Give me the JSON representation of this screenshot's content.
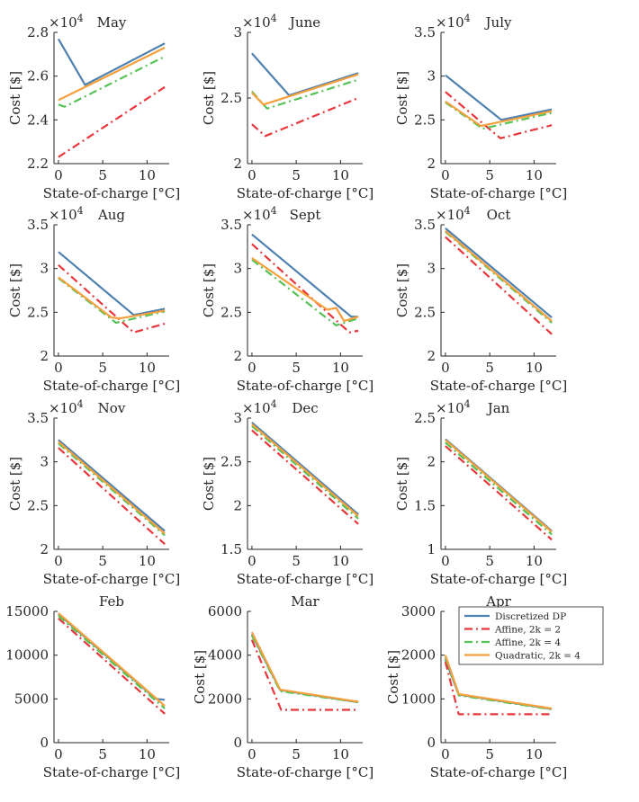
{
  "legend": {
    "entries": [
      {
        "name": "Discretized DP",
        "color": "#4f81b0",
        "dash": "solid"
      },
      {
        "name": "Affine, 2k = 2",
        "color": "#e8373c",
        "dash": "dashdot"
      },
      {
        "name": "Affine, 2k = 4",
        "color": "#57c255",
        "dash": "dashdot"
      },
      {
        "name": "Quadratic, 2k = 4",
        "color": "#f5a03c",
        "dash": "solid"
      }
    ]
  },
  "chart_data": [
    {
      "type": "line",
      "title": "May",
      "xlabel": "State-of-charge [°C]",
      "ylabel": "Cost [$]",
      "multiplier": "×10^4",
      "xlim": [
        -0.5,
        12.5
      ],
      "ylim": [
        2.2,
        2.8
      ],
      "xticks": [
        "0",
        "5",
        "10"
      ],
      "yticks": [
        "2.2",
        "2.4",
        "2.6",
        "2.8"
      ],
      "series": [
        {
          "name": "Discretized DP",
          "x": [
            0,
            3,
            12
          ],
          "y": [
            2.77,
            2.56,
            2.75
          ]
        },
        {
          "name": "Affine, 2k = 2",
          "x": [
            0,
            12
          ],
          "y": [
            2.23,
            2.55
          ]
        },
        {
          "name": "Affine, 2k = 4",
          "x": [
            0,
            0.7,
            12
          ],
          "y": [
            2.47,
            2.46,
            2.69
          ]
        },
        {
          "name": "Quadratic, 2k = 4",
          "x": [
            0,
            12
          ],
          "y": [
            2.49,
            2.73
          ]
        }
      ]
    },
    {
      "type": "line",
      "title": "June",
      "xlabel": "State-of-charge [°C]",
      "ylabel": "Cost [$]",
      "multiplier": "×10^4",
      "xlim": [
        -0.5,
        12.5
      ],
      "ylim": [
        2.0,
        3.0
      ],
      "xticks": [
        "0",
        "5",
        "10"
      ],
      "yticks": [
        "2",
        "2.5",
        "3"
      ],
      "series": [
        {
          "name": "Discretized DP",
          "x": [
            0,
            4.2,
            12
          ],
          "y": [
            2.84,
            2.52,
            2.69
          ]
        },
        {
          "name": "Affine, 2k = 2",
          "x": [
            0,
            1.5,
            12
          ],
          "y": [
            2.3,
            2.21,
            2.5
          ]
        },
        {
          "name": "Affine, 2k = 4",
          "x": [
            0,
            1.7,
            12
          ],
          "y": [
            2.55,
            2.42,
            2.64
          ]
        },
        {
          "name": "Quadratic, 2k = 4",
          "x": [
            0,
            1.3,
            12
          ],
          "y": [
            2.54,
            2.45,
            2.68
          ]
        }
      ]
    },
    {
      "type": "line",
      "title": "July",
      "xlabel": "State-of-charge [°C]",
      "ylabel": "Cost [$]",
      "multiplier": "×10^4",
      "xlim": [
        -0.5,
        12.5
      ],
      "ylim": [
        2.0,
        3.5
      ],
      "xticks": [
        "0",
        "5",
        "10"
      ],
      "yticks": [
        "2",
        "2.5",
        "3",
        "3.5"
      ],
      "series": [
        {
          "name": "Discretized DP",
          "x": [
            0,
            6.3,
            12
          ],
          "y": [
            3.01,
            2.5,
            2.62
          ]
        },
        {
          "name": "Affine, 2k = 2",
          "x": [
            0,
            6.2,
            12
          ],
          "y": [
            2.82,
            2.29,
            2.44
          ]
        },
        {
          "name": "Affine, 2k = 4",
          "x": [
            0,
            4.2,
            12
          ],
          "y": [
            2.7,
            2.4,
            2.58
          ]
        },
        {
          "name": "Quadratic, 2k = 4",
          "x": [
            0,
            4.0,
            12
          ],
          "y": [
            2.71,
            2.43,
            2.6
          ]
        }
      ]
    },
    {
      "type": "line",
      "title": "Aug",
      "xlabel": "State-of-charge [°C]",
      "ylabel": "Cost [$]",
      "multiplier": "×10^4",
      "xlim": [
        -0.5,
        12.5
      ],
      "ylim": [
        2.0,
        3.5
      ],
      "xticks": [
        "0",
        "5",
        "10"
      ],
      "yticks": [
        "2",
        "2.5",
        "3",
        "3.5"
      ],
      "series": [
        {
          "name": "Discretized DP",
          "x": [
            0,
            8.5,
            12
          ],
          "y": [
            3.19,
            2.47,
            2.54
          ]
        },
        {
          "name": "Affine, 2k = 2",
          "x": [
            0,
            8.5,
            12
          ],
          "y": [
            3.04,
            2.27,
            2.37
          ]
        },
        {
          "name": "Affine, 2k = 4",
          "x": [
            0,
            6.5,
            12
          ],
          "y": [
            2.89,
            2.38,
            2.51
          ]
        },
        {
          "name": "Quadratic, 2k = 4",
          "x": [
            0,
            6.0,
            7.0,
            12
          ],
          "y": [
            2.9,
            2.44,
            2.43,
            2.52
          ]
        }
      ]
    },
    {
      "type": "line",
      "title": "Sept",
      "xlabel": "State-of-charge [°C]",
      "ylabel": "Cost [$]",
      "multiplier": "×10^4",
      "xlim": [
        -0.5,
        12.5
      ],
      "ylim": [
        2.0,
        3.5
      ],
      "xticks": [
        "0",
        "5",
        "10"
      ],
      "yticks": [
        "2",
        "2.5",
        "3",
        "3.5"
      ],
      "series": [
        {
          "name": "Discretized DP",
          "x": [
            0,
            11.2,
            12
          ],
          "y": [
            3.39,
            2.45,
            2.45
          ]
        },
        {
          "name": "Affine, 2k = 2",
          "x": [
            0,
            11.0,
            12
          ],
          "y": [
            3.28,
            2.27,
            2.29
          ]
        },
        {
          "name": "Affine, 2k = 4",
          "x": [
            0,
            9.5,
            12
          ],
          "y": [
            3.1,
            2.35,
            2.43
          ]
        },
        {
          "name": "Quadratic, 2k = 4",
          "x": [
            0,
            8.5,
            9.5,
            10.4,
            12
          ],
          "y": [
            3.12,
            2.53,
            2.55,
            2.4,
            2.45
          ]
        }
      ]
    },
    {
      "type": "line",
      "title": "Oct",
      "xlabel": "State-of-charge [°C]",
      "ylabel": "Cost [$]",
      "multiplier": "×10^4",
      "xlim": [
        -0.5,
        12.5
      ],
      "ylim": [
        2.0,
        3.5
      ],
      "xticks": [
        "0",
        "5",
        "10"
      ],
      "yticks": [
        "2",
        "2.5",
        "3",
        "3.5"
      ],
      "series": [
        {
          "name": "Discretized DP",
          "x": [
            0,
            12
          ],
          "y": [
            3.46,
            2.44
          ]
        },
        {
          "name": "Affine, 2k = 2",
          "x": [
            0,
            12
          ],
          "y": [
            3.36,
            2.25
          ]
        },
        {
          "name": "Affine, 2k = 4",
          "x": [
            0,
            12
          ],
          "y": [
            3.42,
            2.38
          ]
        },
        {
          "name": "Quadratic, 2k = 4",
          "x": [
            0,
            12
          ],
          "y": [
            3.43,
            2.4
          ]
        }
      ]
    },
    {
      "type": "line",
      "title": "Nov",
      "xlabel": "State-of-charge [°C]",
      "ylabel": "Cost [$]",
      "multiplier": "×10^4",
      "xlim": [
        -0.5,
        12.5
      ],
      "ylim": [
        2.0,
        3.5
      ],
      "xticks": [
        "0",
        "5",
        "10"
      ],
      "yticks": [
        "2",
        "2.5",
        "3",
        "3.5"
      ],
      "series": [
        {
          "name": "Discretized DP",
          "x": [
            0,
            12
          ],
          "y": [
            3.25,
            2.21
          ]
        },
        {
          "name": "Affine, 2k = 2",
          "x": [
            0,
            12
          ],
          "y": [
            3.16,
            2.06
          ]
        },
        {
          "name": "Affine, 2k = 4",
          "x": [
            0,
            12
          ],
          "y": [
            3.21,
            2.16
          ]
        },
        {
          "name": "Quadratic, 2k = 4",
          "x": [
            0,
            12
          ],
          "y": [
            3.23,
            2.18
          ]
        }
      ]
    },
    {
      "type": "line",
      "title": "Dec",
      "xlabel": "State-of-charge [°C]",
      "ylabel": "Cost [$]",
      "multiplier": "×10^4",
      "xlim": [
        -0.5,
        12.5
      ],
      "ylim": [
        1.5,
        3.0
      ],
      "xticks": [
        "0",
        "5",
        "10"
      ],
      "yticks": [
        "1.5",
        "2",
        "2.5",
        "3"
      ],
      "series": [
        {
          "name": "Discretized DP",
          "x": [
            0,
            12
          ],
          "y": [
            2.95,
            1.9
          ]
        },
        {
          "name": "Affine, 2k = 2",
          "x": [
            0,
            12
          ],
          "y": [
            2.86,
            1.79
          ]
        },
        {
          "name": "Affine, 2k = 4",
          "x": [
            0,
            12
          ],
          "y": [
            2.91,
            1.85
          ]
        },
        {
          "name": "Quadratic, 2k = 4",
          "x": [
            0,
            12
          ],
          "y": [
            2.93,
            1.88
          ]
        }
      ]
    },
    {
      "type": "line",
      "title": "Jan",
      "xlabel": "State-of-charge [°C]",
      "ylabel": "Cost [$]",
      "multiplier": "×10^4",
      "xlim": [
        -0.5,
        12.5
      ],
      "ylim": [
        1.0,
        2.5
      ],
      "xticks": [
        "0",
        "5",
        "10"
      ],
      "yticks": [
        "1",
        "1.5",
        "2",
        "2.5"
      ],
      "series": [
        {
          "name": "Discretized DP",
          "x": [
            0,
            12
          ],
          "y": [
            2.26,
            1.21
          ]
        },
        {
          "name": "Affine, 2k = 2",
          "x": [
            0,
            12
          ],
          "y": [
            2.18,
            1.11
          ]
        },
        {
          "name": "Affine, 2k = 4",
          "x": [
            0,
            12
          ],
          "y": [
            2.22,
            1.17
          ]
        },
        {
          "name": "Quadratic, 2k = 4",
          "x": [
            0,
            12
          ],
          "y": [
            2.25,
            1.2
          ]
        }
      ]
    },
    {
      "type": "line",
      "title": "Feb",
      "xlabel": "State-of-charge [°C]",
      "ylabel": "",
      "multiplier": "",
      "xlim": [
        -0.5,
        12.5
      ],
      "ylim": [
        0,
        15000
      ],
      "xticks": [
        "0",
        "5",
        "10"
      ],
      "yticks": [
        "0",
        "5000",
        "10000",
        "15000"
      ],
      "series": [
        {
          "name": "Discretized DP",
          "x": [
            0,
            11,
            12
          ],
          "y": [
            14700,
            5000,
            4900
          ]
        },
        {
          "name": "Affine, 2k = 2",
          "x": [
            0,
            12
          ],
          "y": [
            14200,
            3300
          ]
        },
        {
          "name": "Affine, 2k = 4",
          "x": [
            0,
            12
          ],
          "y": [
            14500,
            3900
          ]
        },
        {
          "name": "Quadratic, 2k = 4",
          "x": [
            0,
            12
          ],
          "y": [
            14800,
            4200
          ]
        }
      ]
    },
    {
      "type": "line",
      "title": "Mar",
      "xlabel": "State-of-charge [°C]",
      "ylabel": "Cost [$]",
      "multiplier": "",
      "xlim": [
        -0.5,
        12.5
      ],
      "ylim": [
        0,
        6000
      ],
      "xticks": [
        "0",
        "5",
        "10"
      ],
      "yticks": [
        "0",
        "2000",
        "4000",
        "6000"
      ],
      "series": [
        {
          "name": "Discretized DP",
          "x": [
            0,
            3.2,
            12
          ],
          "y": [
            4950,
            2400,
            1850
          ]
        },
        {
          "name": "Affine, 2k = 2",
          "x": [
            0,
            3.3,
            12
          ],
          "y": [
            4700,
            1500,
            1500
          ]
        },
        {
          "name": "Affine, 2k = 4",
          "x": [
            0,
            3.2,
            12
          ],
          "y": [
            4900,
            2350,
            1850
          ]
        },
        {
          "name": "Quadratic, 2k = 4",
          "x": [
            0,
            3.2,
            12
          ],
          "y": [
            5050,
            2420,
            1870
          ]
        }
      ]
    },
    {
      "type": "line",
      "title": "Apr",
      "xlabel": "State-of-charge [°C]",
      "ylabel": "Cost [$]",
      "multiplier": "",
      "xlim": [
        -0.5,
        12.5
      ],
      "ylim": [
        0,
        3000
      ],
      "xticks": [
        "0",
        "5",
        "10"
      ],
      "yticks": [
        "0",
        "1000",
        "2000",
        "3000"
      ],
      "series": [
        {
          "name": "Discretized DP",
          "x": [
            0,
            1.5,
            12
          ],
          "y": [
            1900,
            1100,
            770
          ]
        },
        {
          "name": "Affine, 2k = 2",
          "x": [
            0,
            1.5,
            12
          ],
          "y": [
            1850,
            650,
            650
          ]
        },
        {
          "name": "Affine, 2k = 4",
          "x": [
            0,
            1.5,
            12
          ],
          "y": [
            1950,
            1080,
            760
          ]
        },
        {
          "name": "Quadratic, 2k = 4",
          "x": [
            0,
            1.5,
            12
          ],
          "y": [
            2000,
            1110,
            780
          ]
        }
      ]
    }
  ]
}
